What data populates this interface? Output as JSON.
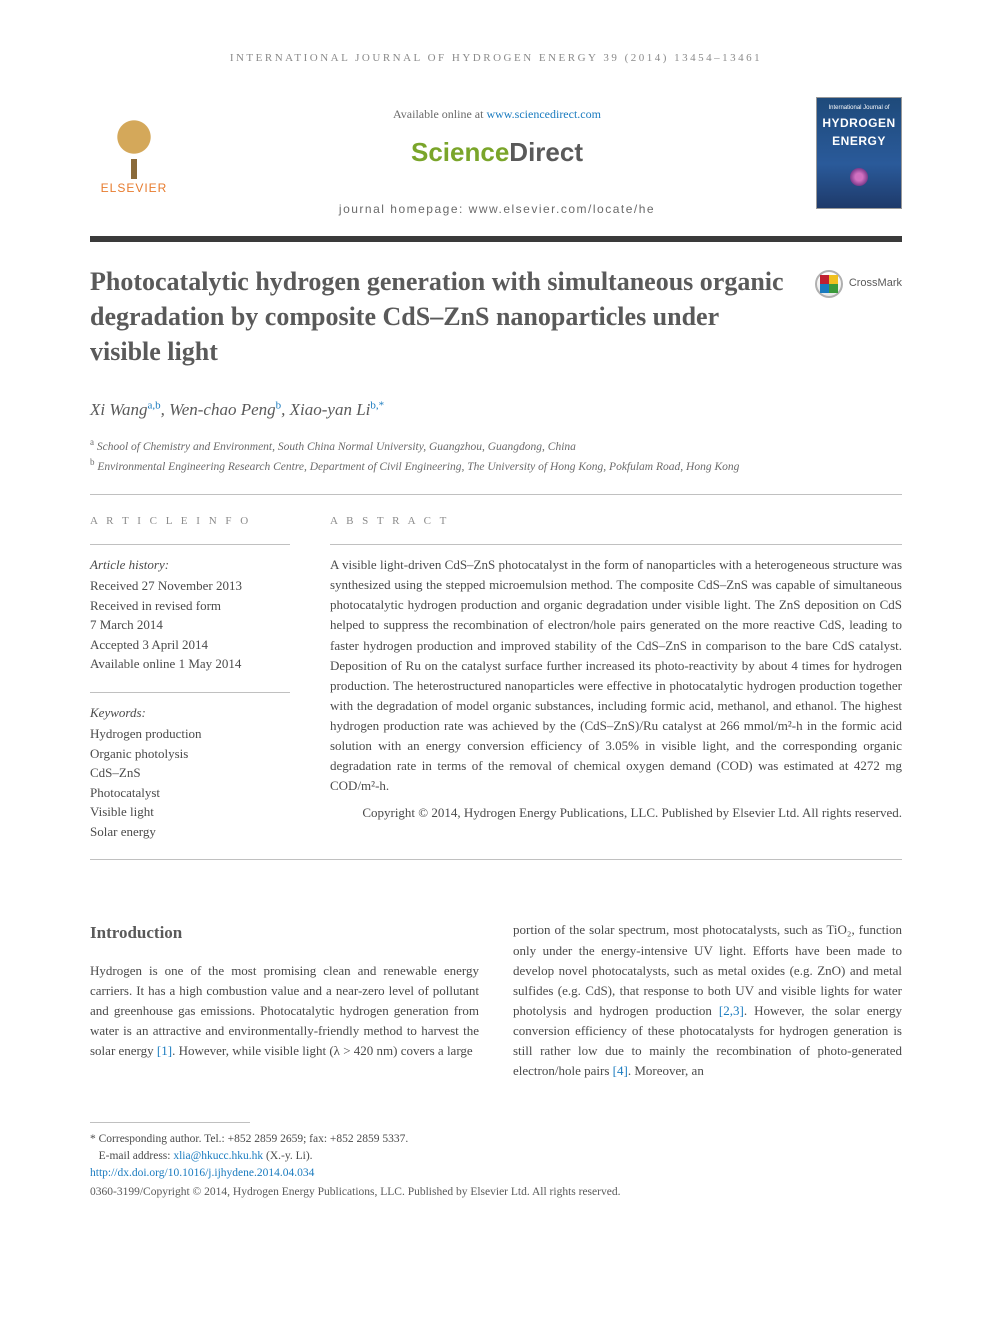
{
  "running_head": "INTERNATIONAL JOURNAL OF HYDROGEN ENERGY 39 (2014) 13454–13461",
  "header": {
    "available_prefix": "Available online at ",
    "available_url": "www.sciencedirect.com",
    "sd_science": "Science",
    "sd_direct": "Direct",
    "homepage": "journal homepage: www.elsevier.com/locate/he",
    "elsevier": "ELSEVIER",
    "cover_line1": "International Journal of",
    "cover_line2": "HYDROGEN",
    "cover_line3": "ENERGY"
  },
  "title": "Photocatalytic hydrogen generation with simultaneous organic degradation by composite CdS–ZnS nanoparticles under visible light",
  "crossmark": "CrossMark",
  "authors": {
    "a1_name": "Xi Wang",
    "a1_aff": "a,b",
    "a2_name": "Wen-chao Peng",
    "a2_aff": "b",
    "a3_name": "Xiao-yan Li",
    "a3_aff": "b,*"
  },
  "affiliations": {
    "a": "School of Chemistry and Environment, South China Normal University, Guangzhou, Guangdong, China",
    "b": "Environmental Engineering Research Centre, Department of Civil Engineering, The University of Hong Kong, Pokfulam Road, Hong Kong"
  },
  "article_info": {
    "label": "A R T I C L E   I N F O",
    "history_head": "Article history:",
    "h1": "Received 27 November 2013",
    "h2": "Received in revised form",
    "h3": "7 March 2014",
    "h4": "Accepted 3 April 2014",
    "h5": "Available online 1 May 2014",
    "keywords_head": "Keywords:",
    "k1": "Hydrogen production",
    "k2": "Organic photolysis",
    "k3": "CdS–ZnS",
    "k4": "Photocatalyst",
    "k5": "Visible light",
    "k6": "Solar energy"
  },
  "abstract": {
    "label": "A B S T R A C T",
    "text": "A visible light-driven CdS–ZnS photocatalyst in the form of nanoparticles with a heterogeneous structure was synthesized using the stepped microemulsion method. The composite CdS–ZnS was capable of simultaneous photocatalytic hydrogen production and organic degradation under visible light. The ZnS deposition on CdS helped to suppress the recombination of electron/hole pairs generated on the more reactive CdS, leading to faster hydrogen production and improved stability of the CdS–ZnS in comparison to the bare CdS catalyst. Deposition of Ru on the catalyst surface further increased its photo-reactivity by about 4 times for hydrogen production. The heterostructured nanoparticles were effective in photocatalytic hydrogen production together with the degradation of model organic substances, including formic acid, methanol, and ethanol. The highest hydrogen production rate was achieved by the (CdS–ZnS)/Ru catalyst at 266 mmol/m²-h in the formic acid solution with an energy conversion efficiency of 3.05% in visible light, and the corresponding organic degradation rate in terms of the removal of chemical oxygen demand (COD) was estimated at 4272 mg COD/m²-h.",
    "copyright": "Copyright © 2014, Hydrogen Energy Publications, LLC. Published by Elsevier Ltd. All rights reserved."
  },
  "intro": {
    "head": "Introduction",
    "col1_a": "Hydrogen is one of the most promising clean and renewable energy carriers. It has a high combustion value and a near-zero level of pollutant and greenhouse gas emissions. Photocatalytic hydrogen generation from water is an attractive and environmentally-friendly method to harvest the solar energy ",
    "ref1": "[1]",
    "col1_b": ". However, while visible light (λ > 420 nm) covers a large",
    "col2_a": "portion of the solar spectrum, most photocatalysts, such as TiO₂, function only under the energy-intensive UV light. Efforts have been made to develop novel photocatalysts, such as metal oxides (e.g. ZnO) and metal sulfides (e.g. CdS), that response to both UV and visible lights for water photolysis and hydrogen production ",
    "ref23": "[2,3]",
    "col2_b": ". However, the solar energy conversion efficiency of these photocatalysts for hydrogen generation is still rather low due to mainly the recombination of photo-generated electron/hole pairs ",
    "ref4": "[4]",
    "col2_c": ". Moreover, an"
  },
  "footer": {
    "corresponding": "* Corresponding author. Tel.: +852 2859 2659; fax: +852 2859 5337.",
    "email_label": "E-mail address: ",
    "email": "xlia@hkucc.hku.hk",
    "email_suffix": " (X.-y. Li).",
    "doi": "http://dx.doi.org/10.1016/j.ijhydene.2014.04.034",
    "issn": "0360-3199/Copyright © 2014, Hydrogen Energy Publications, LLC. Published by Elsevier Ltd. All rights reserved."
  },
  "colors": {
    "link": "#1a7bbf",
    "elsevier_orange": "#e77b2e",
    "sd_green": "#7aa52a",
    "sd_grey": "#5a5a5a",
    "rule_dark": "#3a3a3a",
    "text": "#4a4a4a"
  }
}
